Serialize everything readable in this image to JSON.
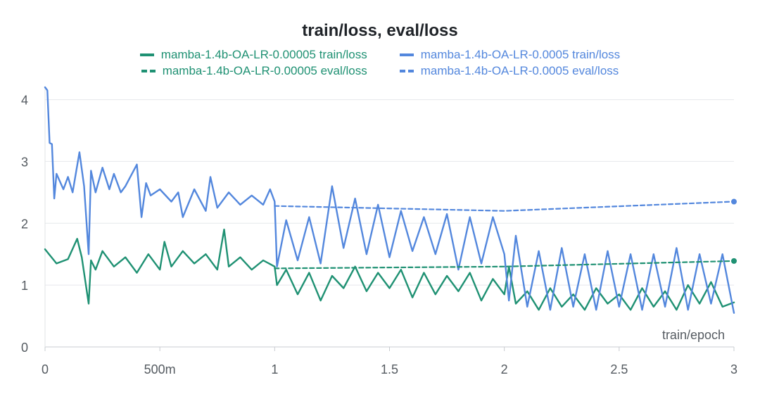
{
  "chart_data": {
    "type": "line",
    "title": "train/loss, eval/loss",
    "xlabel": "train/epoch",
    "ylabel": "",
    "xlim": [
      0,
      3
    ],
    "ylim": [
      0,
      4.2
    ],
    "x_ticks": [
      {
        "value": 0,
        "label": "0"
      },
      {
        "value": 0.5,
        "label": "500m"
      },
      {
        "value": 1,
        "label": "1"
      },
      {
        "value": 1.5,
        "label": "1.5"
      },
      {
        "value": 2,
        "label": "2"
      },
      {
        "value": 2.5,
        "label": "2.5"
      },
      {
        "value": 3,
        "label": "3"
      }
    ],
    "y_ticks": [
      {
        "value": 0,
        "label": "0"
      },
      {
        "value": 1,
        "label": "1"
      },
      {
        "value": 2,
        "label": "2"
      },
      {
        "value": 3,
        "label": "3"
      },
      {
        "value": 4,
        "label": "4"
      }
    ],
    "grid": true,
    "legend_position": "top-center",
    "series": [
      {
        "name": "mamba-1.4b-OA-LR-0.00005 train/loss",
        "color": "#1f9173",
        "style": "solid",
        "x": [
          0,
          0.05,
          0.1,
          0.14,
          0.16,
          0.19,
          0.2,
          0.22,
          0.25,
          0.3,
          0.35,
          0.4,
          0.45,
          0.5,
          0.52,
          0.55,
          0.6,
          0.65,
          0.7,
          0.75,
          0.78,
          0.8,
          0.85,
          0.9,
          0.95,
          1.0,
          1.01,
          1.05,
          1.1,
          1.15,
          1.2,
          1.25,
          1.3,
          1.35,
          1.4,
          1.45,
          1.5,
          1.55,
          1.6,
          1.65,
          1.7,
          1.75,
          1.8,
          1.85,
          1.9,
          1.95,
          2.0,
          2.02,
          2.05,
          2.1,
          2.15,
          2.2,
          2.25,
          2.3,
          2.35,
          2.4,
          2.45,
          2.5,
          2.55,
          2.6,
          2.65,
          2.7,
          2.75,
          2.8,
          2.85,
          2.9,
          2.95,
          3.0
        ],
        "values": [
          1.58,
          1.35,
          1.42,
          1.75,
          1.45,
          0.7,
          1.4,
          1.25,
          1.55,
          1.3,
          1.45,
          1.2,
          1.5,
          1.25,
          1.7,
          1.3,
          1.55,
          1.35,
          1.5,
          1.25,
          1.9,
          1.3,
          1.45,
          1.25,
          1.4,
          1.3,
          1.0,
          1.25,
          0.85,
          1.2,
          0.75,
          1.15,
          0.95,
          1.3,
          0.9,
          1.2,
          0.95,
          1.25,
          0.8,
          1.2,
          0.85,
          1.15,
          0.9,
          1.2,
          0.75,
          1.1,
          0.85,
          1.3,
          0.7,
          0.9,
          0.6,
          0.95,
          0.65,
          0.85,
          0.6,
          0.95,
          0.7,
          0.85,
          0.6,
          0.95,
          0.65,
          0.9,
          0.6,
          1.0,
          0.7,
          1.05,
          0.65,
          0.72
        ]
      },
      {
        "name": "mamba-1.4b-OA-LR-0.00005 eval/loss",
        "color": "#1f9173",
        "style": "dashed",
        "x": [
          1,
          2,
          3
        ],
        "values": [
          1.27,
          1.3,
          1.39
        ]
      },
      {
        "name": "mamba-1.4b-OA-LR-0.0005 train/loss",
        "color": "#5387dd",
        "style": "solid",
        "x": [
          0,
          0.01,
          0.02,
          0.03,
          0.04,
          0.05,
          0.08,
          0.1,
          0.12,
          0.15,
          0.17,
          0.19,
          0.2,
          0.22,
          0.25,
          0.28,
          0.3,
          0.33,
          0.35,
          0.4,
          0.42,
          0.44,
          0.46,
          0.5,
          0.55,
          0.58,
          0.6,
          0.65,
          0.7,
          0.72,
          0.75,
          0.8,
          0.85,
          0.9,
          0.95,
          0.98,
          1.0,
          1.01,
          1.05,
          1.1,
          1.15,
          1.2,
          1.25,
          1.3,
          1.35,
          1.4,
          1.45,
          1.5,
          1.55,
          1.6,
          1.65,
          1.7,
          1.75,
          1.8,
          1.85,
          1.9,
          1.95,
          2.0,
          2.02,
          2.05,
          2.1,
          2.15,
          2.2,
          2.25,
          2.3,
          2.35,
          2.4,
          2.45,
          2.5,
          2.55,
          2.6,
          2.65,
          2.7,
          2.75,
          2.8,
          2.85,
          2.9,
          2.95,
          3.0
        ],
        "values": [
          4.2,
          4.15,
          3.3,
          3.28,
          2.4,
          2.8,
          2.55,
          2.75,
          2.5,
          3.15,
          2.6,
          1.5,
          2.85,
          2.5,
          2.9,
          2.55,
          2.8,
          2.5,
          2.6,
          2.95,
          2.1,
          2.65,
          2.45,
          2.55,
          2.35,
          2.5,
          2.1,
          2.55,
          2.2,
          2.75,
          2.25,
          2.5,
          2.3,
          2.45,
          2.3,
          2.55,
          2.35,
          1.3,
          2.05,
          1.4,
          2.1,
          1.35,
          2.6,
          1.6,
          2.4,
          1.5,
          2.3,
          1.45,
          2.2,
          1.55,
          2.1,
          1.5,
          2.15,
          1.25,
          2.1,
          1.35,
          2.1,
          1.5,
          0.75,
          1.8,
          0.65,
          1.55,
          0.6,
          1.6,
          0.65,
          1.5,
          0.6,
          1.55,
          0.65,
          1.5,
          0.6,
          1.5,
          0.65,
          1.6,
          0.6,
          1.5,
          0.7,
          1.5,
          0.55
        ]
      },
      {
        "name": "mamba-1.4b-OA-LR-0.0005 eval/loss",
        "color": "#5387dd",
        "style": "dashed",
        "x": [
          1,
          2,
          3
        ],
        "values": [
          2.28,
          2.2,
          2.35
        ]
      }
    ]
  }
}
